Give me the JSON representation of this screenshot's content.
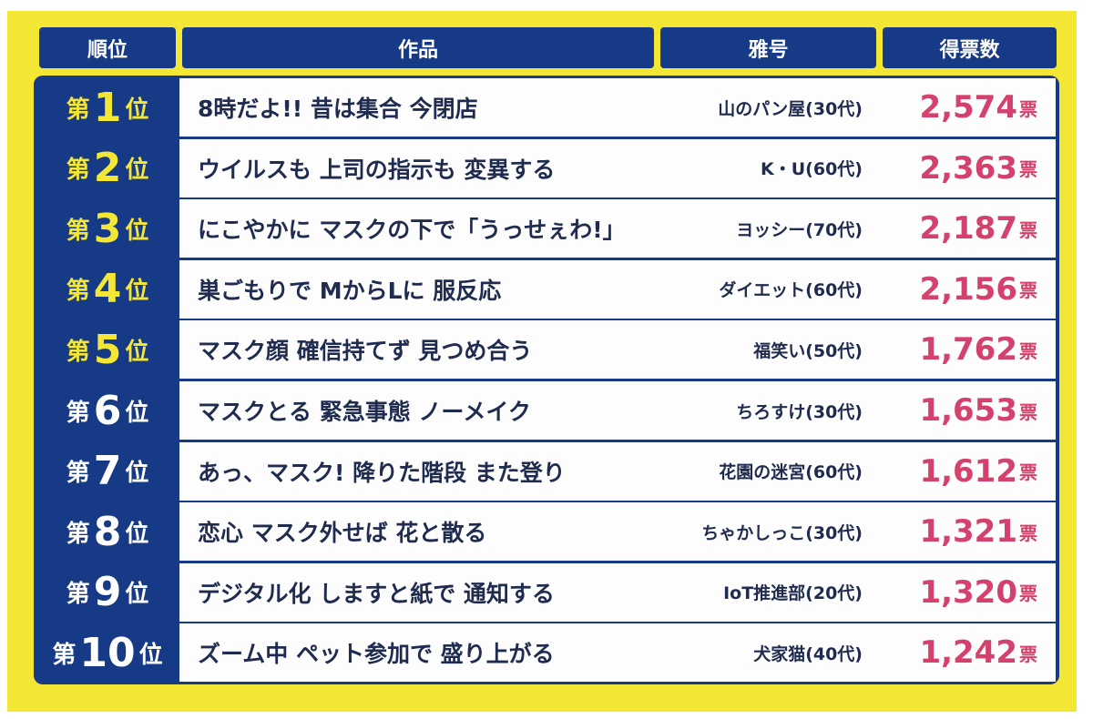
{
  "headers": {
    "rank": "順位",
    "work": "作品",
    "pen_name": "雅号",
    "votes": "得票数"
  },
  "rank_prefix": "第",
  "rank_suffix": "位",
  "vote_unit": "票",
  "colors": {
    "background": "#f4e635",
    "navy": "#173a86",
    "top_rank_text": "#f4e635",
    "other_rank_text": "#ffffff",
    "votes": "#d4416c"
  },
  "rows": [
    {
      "rank": "1",
      "work": "8時だよ!! 昔は集合 今閉店",
      "pen_name": "山のパン屋(30代)",
      "votes": "2,574"
    },
    {
      "rank": "2",
      "work": "ウイルスも 上司の指示も 変異する",
      "pen_name": "K・U(60代)",
      "votes": "2,363"
    },
    {
      "rank": "3",
      "work": "にこやかに マスクの下で「うっせぇわ!」",
      "pen_name": "ヨッシー(70代)",
      "votes": "2,187"
    },
    {
      "rank": "4",
      "work": "巣ごもりで MからLに 服反応",
      "pen_name": "ダイエット(60代)",
      "votes": "2,156"
    },
    {
      "rank": "5",
      "work": "マスク顔 確信持てず 見つめ合う",
      "pen_name": "福笑い(50代)",
      "votes": "1,762"
    },
    {
      "rank": "6",
      "work": "マスクとる 緊急事態 ノーメイク",
      "pen_name": "ちろすけ(30代)",
      "votes": "1,653"
    },
    {
      "rank": "7",
      "work": "あっ、マスク! 降りた階段 また登り",
      "pen_name": "花園の迷宮(60代)",
      "votes": "1,612"
    },
    {
      "rank": "8",
      "work": "恋心 マスク外せば 花と散る",
      "pen_name": "ちゃかしっこ(30代)",
      "votes": "1,321"
    },
    {
      "rank": "9",
      "work": "デジタル化 しますと紙で 通知する",
      "pen_name": "IoT推進部(20代)",
      "votes": "1,320"
    },
    {
      "rank": "10",
      "work": "ズーム中 ペット参加で 盛り上がる",
      "pen_name": "犬家猫(40代)",
      "votes": "1,242"
    }
  ]
}
